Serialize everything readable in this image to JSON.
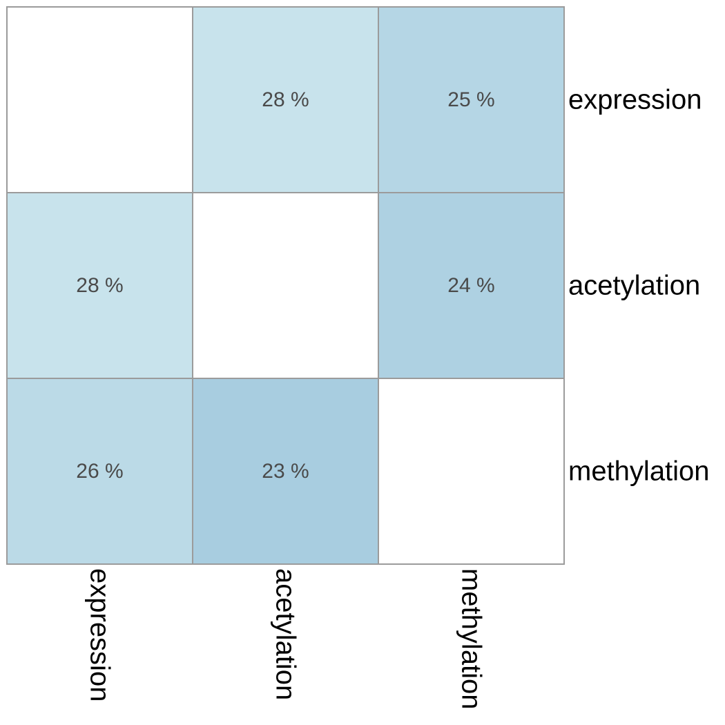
{
  "chart_data": {
    "type": "heatmap",
    "title": "",
    "rows": [
      "expression",
      "acetylation",
      "methylation"
    ],
    "columns": [
      "expression",
      "acetylation",
      "methylation"
    ],
    "values": [
      [
        null,
        28,
        25
      ],
      [
        28,
        null,
        24
      ],
      [
        26,
        23,
        null
      ]
    ],
    "value_labels": [
      [
        "",
        "28 %",
        "25 %"
      ],
      [
        "28 %",
        "",
        "24 %"
      ],
      [
        "26 %",
        "23 %",
        ""
      ]
    ],
    "value_unit": "%",
    "row_label_position": "right",
    "column_label_position": "bottom",
    "column_label_rotation": "vertical",
    "color_scale": {
      "low_color": "#c8e3ec",
      "high_color": "#a8cde0",
      "diagonal_color": "#ffffff",
      "grid_color": "#9b9b9b"
    }
  }
}
